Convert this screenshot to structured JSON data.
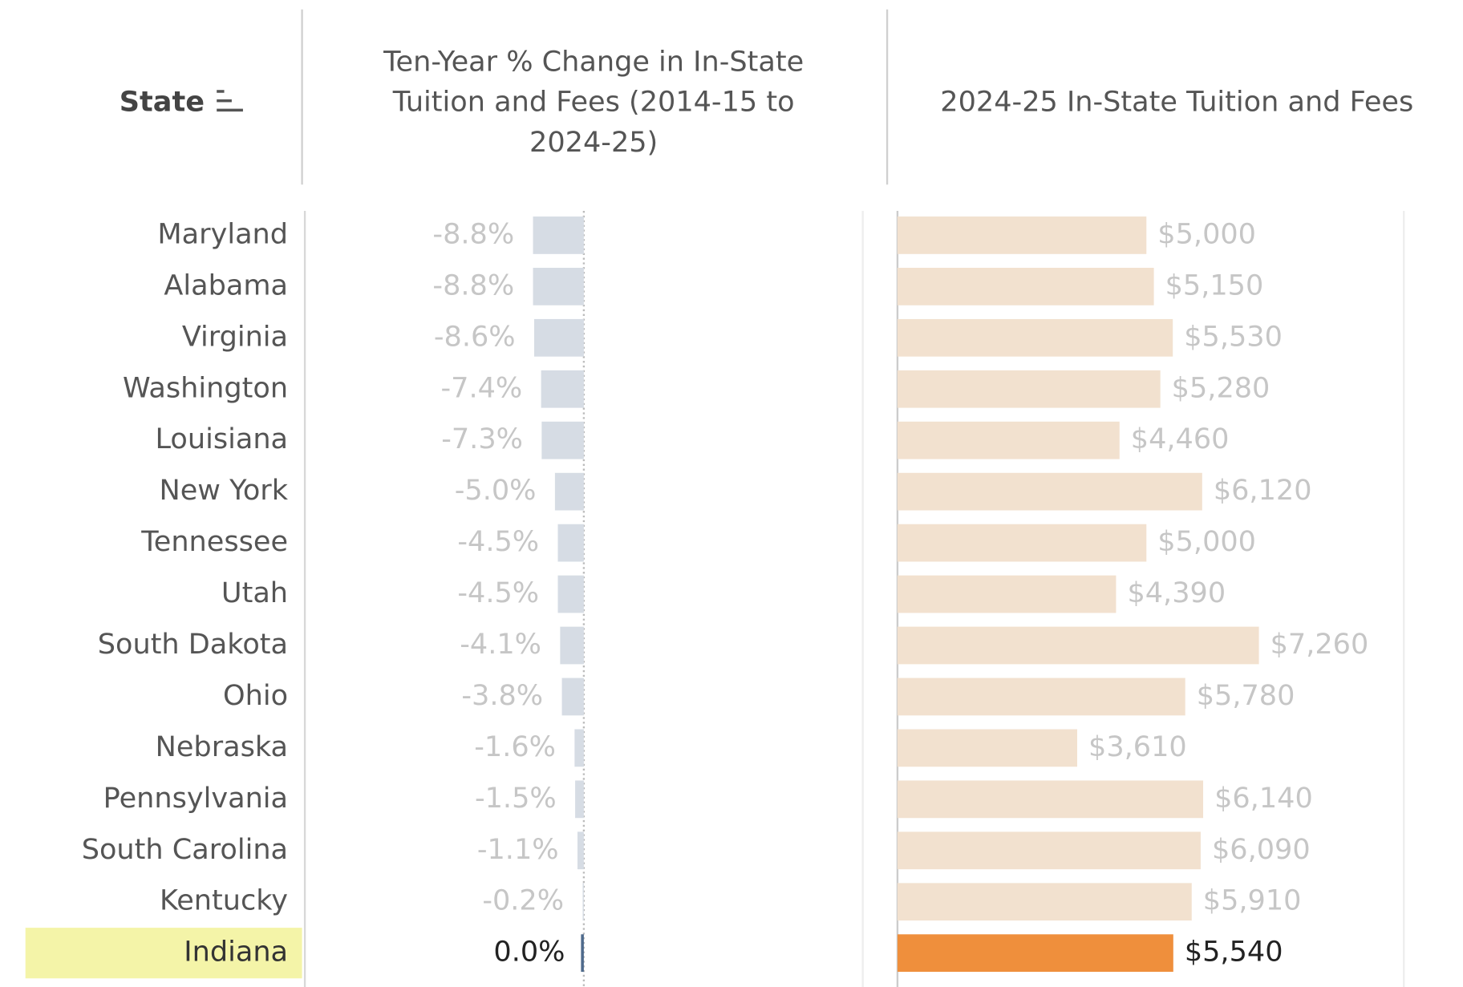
{
  "chart_data": [
    {
      "type": "bar",
      "category_header": "State",
      "title": [
        "Ten-Year % Change in In-State",
        "Tuition and Fees (2014-15 to",
        "2024-25)"
      ],
      "categories": [
        "Maryland",
        "Alabama",
        "Virginia",
        "Washington",
        "Louisiana",
        "New York",
        "Tennessee",
        "Utah",
        "South Dakota",
        "Ohio",
        "Nebraska",
        "Pennsylvania",
        "South Carolina",
        "Kentucky",
        "Indiana"
      ],
      "values": [
        -8.8,
        -8.8,
        -8.6,
        -7.4,
        -7.3,
        -5.0,
        -4.5,
        -4.5,
        -4.1,
        -3.8,
        -1.6,
        -1.5,
        -1.1,
        -0.2,
        0.0
      ],
      "value_labels": [
        "-8.8%",
        "-8.8%",
        "-8.6%",
        "-7.4%",
        "-7.3%",
        "-5.0%",
        "-4.5%",
        "-4.5%",
        "-4.1%",
        "-3.8%",
        "-1.6%",
        "-1.5%",
        "-1.1%",
        "-0.2%",
        "0.0%"
      ],
      "xlim": [
        -48,
        48
      ],
      "color": "#d6dce4",
      "highlight_color": "#4e6a8c",
      "highlight_index": 14
    },
    {
      "type": "bar",
      "title": [
        "2024-25 In-State Tuition and Fees"
      ],
      "values": [
        5000,
        5150,
        5530,
        5280,
        4460,
        6120,
        5000,
        4390,
        7260,
        5780,
        3610,
        6140,
        6090,
        5910,
        5540
      ],
      "value_labels": [
        "$5,000",
        "$5,150",
        "$5,530",
        "$5,280",
        "$4,460",
        "$6,120",
        "$5,000",
        "$4,390",
        "$7,260",
        "$5,780",
        "$3,610",
        "$6,140",
        "$6,090",
        "$5,910",
        "$5,540"
      ],
      "xlim": [
        0,
        10170
      ],
      "color": "#f2e1cf",
      "highlight_color": "#ef8f3c",
      "highlight_index": 14
    }
  ]
}
